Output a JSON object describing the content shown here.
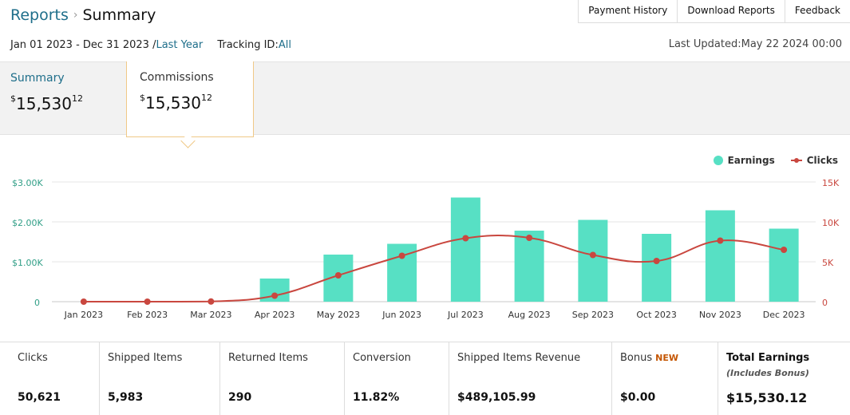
{
  "breadcrumb": {
    "parent": "Reports",
    "separator": "›",
    "current": "Summary"
  },
  "top_links": [
    "Payment History",
    "Download Reports",
    "Feedback"
  ],
  "date_range": {
    "range": "Jan 01 2023 - Dec 31 2023 /",
    "preset": "Last Year",
    "tracking_label": "Tracking ID:",
    "tracking_value": "All"
  },
  "last_updated": "Last Updated:May 22 2024 00:00",
  "tabs": {
    "summary": {
      "label": "Summary",
      "currency": "$",
      "whole": "15,530",
      "cents": "12"
    },
    "commissions": {
      "label": "Commissions",
      "currency": "$",
      "whole": "15,530",
      "cents": "12"
    }
  },
  "colors": {
    "earnings": "#57e0c4",
    "clicks": "#c9473f",
    "link": "#1e6e8a"
  },
  "chart_data": {
    "type": "bar",
    "categories": [
      "Jan 2023",
      "Feb 2023",
      "Mar 2023",
      "Apr 2023",
      "May 2023",
      "Jun 2023",
      "Jul 2023",
      "Aug 2023",
      "Sep 2023",
      "Oct 2023",
      "Nov 2023",
      "Dec 2023"
    ],
    "series": [
      {
        "name": "Earnings",
        "type": "bar",
        "axis": "left",
        "values": [
          0,
          0,
          0,
          580,
          1180,
          1450,
          2610,
          1780,
          2050,
          1700,
          2290,
          1830
        ]
      },
      {
        "name": "Clicks",
        "type": "line",
        "axis": "right",
        "values": [
          0,
          0,
          20,
          750,
          3300,
          5750,
          7950,
          8000,
          5850,
          5100,
          7650,
          6500
        ]
      }
    ],
    "legend": [
      "Earnings",
      "Clicks"
    ],
    "y_left": {
      "ticks": [
        "$3.00K",
        "$2.00K",
        "$1.00K",
        "0"
      ],
      "ylim": [
        0,
        3000
      ]
    },
    "y_right": {
      "ticks": [
        "15K",
        "10K",
        "5K",
        "0"
      ],
      "ylim": [
        0,
        15000
      ]
    }
  },
  "stats": [
    {
      "label": "Clicks",
      "value": "50,621"
    },
    {
      "label": "Shipped Items",
      "value": "5,983"
    },
    {
      "label": "Returned Items",
      "value": "290"
    },
    {
      "label": "Conversion",
      "value": "11.82%"
    },
    {
      "label": "Shipped Items Revenue",
      "value": "$489,105.99"
    },
    {
      "label": "Bonus",
      "badge": "NEW",
      "value": "$0.00"
    },
    {
      "label": "Total Earnings",
      "sublabel": "(Includes Bonus)",
      "value": "$15,530.12"
    }
  ]
}
